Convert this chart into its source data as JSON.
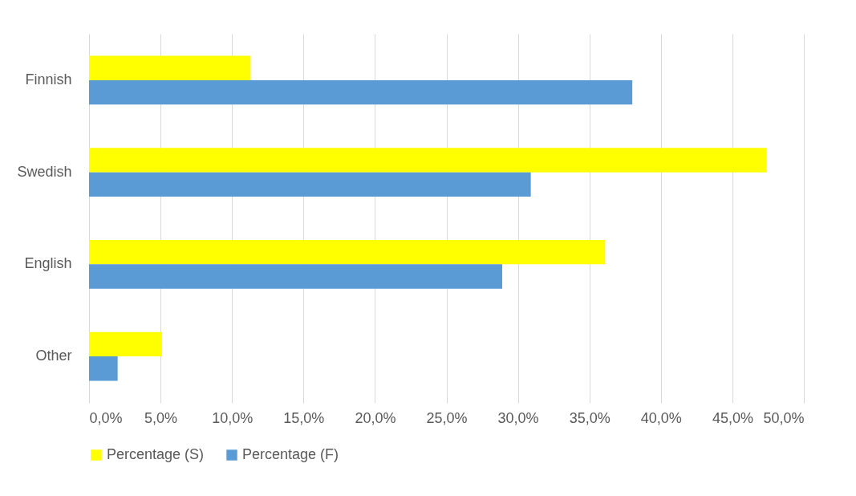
{
  "chart_data": {
    "type": "bar",
    "orientation": "horizontal",
    "categories": [
      "Finnish",
      "Swedish",
      "English",
      "Other"
    ],
    "series": [
      {
        "name": "Percentage (S)",
        "color": "#ffff00",
        "values": [
          11.3,
          47.4,
          36.1,
          5.1
        ]
      },
      {
        "name": "Percentage (F)",
        "color": "#5b9bd5",
        "values": [
          38.0,
          30.9,
          28.9,
          2.0
        ]
      }
    ],
    "xlim": [
      0,
      50
    ],
    "xticks": [
      {
        "value": 0,
        "label": "0,0%"
      },
      {
        "value": 5,
        "label": "5,0%"
      },
      {
        "value": 10,
        "label": "10,0%"
      },
      {
        "value": 15,
        "label": "15,0%"
      },
      {
        "value": 20,
        "label": "20,0%"
      },
      {
        "value": 25,
        "label": "25,0%"
      },
      {
        "value": 30,
        "label": "30,0%"
      },
      {
        "value": 35,
        "label": "35,0%"
      },
      {
        "value": 40,
        "label": "40,0%"
      },
      {
        "value": 45,
        "label": "45,0%"
      },
      {
        "value": 50,
        "label": "50,0%"
      }
    ],
    "grid": "x",
    "legend": "bottom"
  }
}
